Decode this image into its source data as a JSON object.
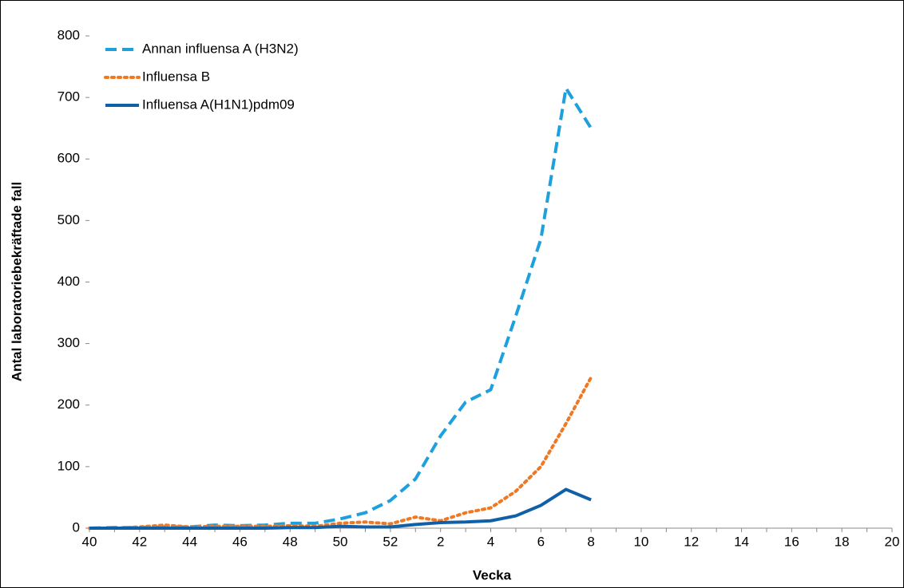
{
  "chart_data": {
    "type": "line",
    "x_label": "Vecka",
    "y_label": "Antal laboratoriebekräftade fall",
    "categories": [
      "40",
      null,
      "42",
      null,
      "44",
      null,
      "46",
      null,
      "48",
      null,
      "50",
      null,
      "52",
      null,
      "2",
      null,
      "4",
      null,
      "6",
      null,
      "8",
      null,
      "10",
      null,
      "12",
      null,
      "14",
      null,
      "16",
      null,
      "18",
      null,
      "20"
    ],
    "series": [
      {
        "name": "Annan influensa A (H3N2)",
        "color": "#1ea0dc",
        "dash": "dashed",
        "values": [
          0,
          1,
          1,
          2,
          2,
          5,
          4,
          5,
          8,
          8,
          15,
          25,
          45,
          80,
          150,
          205,
          225,
          345,
          470,
          715,
          650,
          null,
          null,
          null,
          null,
          null,
          null,
          null,
          null,
          null,
          null,
          null,
          null
        ]
      },
      {
        "name": "Influensa B",
        "color": "#f07820",
        "dash": "dotted",
        "values": [
          0,
          0,
          2,
          5,
          2,
          3,
          3,
          3,
          4,
          3,
          8,
          10,
          7,
          18,
          12,
          25,
          33,
          60,
          100,
          170,
          245,
          null,
          null,
          null,
          null,
          null,
          null,
          null,
          null,
          null,
          null,
          null,
          null
        ]
      },
      {
        "name": "Influensa A(H1N1)pdm09",
        "color": "#1060a8",
        "dash": "solid",
        "values": [
          0,
          0,
          0,
          0,
          0,
          0,
          0,
          0,
          1,
          1,
          3,
          2,
          2,
          6,
          9,
          10,
          12,
          20,
          37,
          63,
          46,
          null,
          null,
          null,
          null,
          null,
          null,
          null,
          null,
          null,
          null,
          null,
          null
        ]
      }
    ],
    "ylim": [
      0,
      800
    ],
    "yticks": [
      0,
      100,
      200,
      300,
      400,
      500,
      600,
      700,
      800
    ],
    "legend": "top-left",
    "grid": false
  }
}
